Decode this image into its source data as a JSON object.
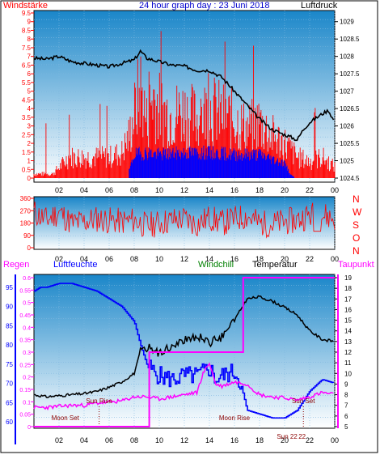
{
  "colors": {
    "wind_speed": "#ff0000",
    "wind_gust": "#ff0000",
    "wind_avg": "#0000ff",
    "pressure": "#000000",
    "direction": "#ff0000",
    "rain": "#ff00ff",
    "humidity": "#0000ff",
    "windchill": "#008000",
    "temperature": "#000000",
    "dewpoint": "#ff00ff",
    "sky_top": "#1a86c9",
    "sky_bottom": "#ffffff"
  },
  "chart_data": [
    {
      "type": "line",
      "title": "24 hour graph day : 23 Juni 2018",
      "left_label": "Windstärke",
      "right_label": "Luftdruck",
      "x_ticks": [
        "02",
        "04",
        "06",
        "08",
        "10",
        "12",
        "14",
        "16",
        "18",
        "20",
        "22",
        "00"
      ],
      "ylim_left": [
        0,
        9.5
      ],
      "yticks_left": [
        "0",
        "0.5",
        "1",
        "1.5",
        "2",
        "2.5",
        "3",
        "3.5",
        "4",
        "4.5",
        "5",
        "5.5",
        "6",
        "6.5",
        "7",
        "7.5",
        "8",
        "8.5",
        "9",
        "9.5"
      ],
      "ylim_right": [
        1024.5,
        1029.25
      ],
      "yticks_right": [
        "1024.5",
        "1025",
        "1025.5",
        "1026",
        "1026.5",
        "1027",
        "1027.5",
        "1028",
        "1028.5",
        "1029"
      ],
      "series": [
        {
          "key": "pressure",
          "hours": [
            0,
            1,
            2,
            3,
            4,
            5,
            6,
            7,
            8,
            8.5,
            9,
            10,
            11,
            12,
            13,
            14,
            15,
            16,
            17,
            18,
            19,
            20,
            20.5,
            21,
            21.5,
            22,
            23,
            23.5,
            24
          ],
          "values": [
            1027.95,
            1027.92,
            1028.0,
            1027.85,
            1027.8,
            1027.75,
            1027.7,
            1027.8,
            1027.9,
            1028.15,
            1027.95,
            1027.85,
            1027.75,
            1027.72,
            1027.6,
            1027.6,
            1027.4,
            1027.0,
            1026.6,
            1026.2,
            1025.9,
            1025.75,
            1025.68,
            1025.6,
            1025.9,
            1026.1,
            1026.35,
            1026.45,
            1026.1
          ]
        },
        {
          "key": "wind_gust",
          "hours": [
            0,
            1.5,
            2.8,
            4,
            5,
            6,
            7,
            7.6,
            8,
            8.5,
            9,
            9.5,
            10,
            11,
            12,
            13,
            14,
            15,
            16,
            17,
            18,
            19,
            20,
            21,
            22,
            23,
            24
          ],
          "values": [
            0.3,
            0.3,
            1.5,
            1.5,
            1.5,
            1.5,
            1.8,
            3.0,
            4.5,
            6.5,
            4.0,
            6.0,
            5.0,
            4.5,
            4.8,
            4.2,
            5.0,
            4.5,
            4.2,
            3.5,
            4.0,
            3.0,
            2.5,
            1.5,
            1.2,
            1.5,
            0.8
          ]
        },
        {
          "key": "wind_avg",
          "hours": [
            0,
            2,
            4,
            6,
            7.5,
            8,
            9,
            10,
            12,
            14,
            16,
            18,
            20,
            20.5,
            21,
            24
          ],
          "values": [
            0,
            0,
            0,
            0,
            0.2,
            1.6,
            1.7,
            1.6,
            1.7,
            1.7,
            1.6,
            1.6,
            1.0,
            0.2,
            0,
            0
          ]
        }
      ]
    },
    {
      "type": "line",
      "left_label": "",
      "right_label": "",
      "direction_labels": [
        "N",
        "W",
        "S",
        "O",
        "N"
      ],
      "x_ticks": [
        "02",
        "04",
        "06",
        "08",
        "10",
        "12",
        "14",
        "16",
        "18",
        "20",
        "22",
        "00"
      ],
      "ylim": [
        0,
        360
      ],
      "yticks": [
        "0",
        "90",
        "180",
        "270",
        "360"
      ],
      "series": [
        {
          "key": "direction",
          "hours": [
            0,
            1,
            2,
            3,
            4,
            5,
            6,
            7,
            8,
            9,
            10,
            11,
            12,
            13,
            14,
            15,
            16,
            17,
            18,
            19,
            20,
            21,
            22,
            23,
            24
          ],
          "values": [
            260,
            200,
            260,
            180,
            190,
            210,
            200,
            190,
            200,
            160,
            180,
            200,
            210,
            170,
            220,
            180,
            210,
            230,
            180,
            170,
            190,
            200,
            240,
            240,
            210
          ]
        }
      ]
    },
    {
      "type": "line",
      "labels": {
        "rain": "Regen",
        "humidity": "Luftfeuchte",
        "windchill": "Windchill",
        "temperature": "Temperatur",
        "dewpoint": "Taupunkt"
      },
      "x_ticks": [
        "02",
        "04",
        "06",
        "08",
        "10",
        "12",
        "14",
        "16",
        "18",
        "20",
        "22",
        "00"
      ],
      "ylim_humidity": [
        60,
        97.5
      ],
      "yticks_humidity": [
        "60",
        "65",
        "70",
        "75",
        "80",
        "85",
        "90",
        "95"
      ],
      "ylim_rain": [
        0,
        0.6
      ],
      "yticks_rain": [
        "0",
        "0.05",
        "0.1",
        "0.15",
        "0.2",
        "0.25",
        "0.3",
        "0.35",
        "0.4",
        "0.45",
        "0.5",
        "0.55",
        "0.6"
      ],
      "ylim_temp": [
        5,
        19
      ],
      "yticks_temp": [
        "5",
        "6",
        "7",
        "8",
        "9",
        "10",
        "11",
        "12",
        "13",
        "14",
        "15",
        "16",
        "17",
        "18",
        "19"
      ],
      "astro_labels": [
        {
          "text": "Moon Set",
          "hour": 2.5
        },
        {
          "text": "Sun Rise",
          "hour": 5.2
        },
        {
          "text": "Moon Rise",
          "hour": 16.0
        },
        {
          "text": "Sun Set",
          "hour": 21.5
        },
        {
          "text": "Sun 22",
          "hour": 20.2
        },
        {
          "text": "22",
          "hour": 21.4
        }
      ],
      "series": [
        {
          "key": "humidity",
          "hours": [
            0,
            0.5,
            1,
            2,
            3,
            4,
            5,
            6,
            7,
            7.5,
            8,
            8.5,
            9,
            9.5,
            10,
            11,
            12,
            13,
            13.5,
            14,
            14.5,
            15,
            16,
            16.5,
            17,
            18,
            19,
            20,
            21,
            22,
            23,
            24
          ],
          "values": [
            94,
            95,
            95,
            96,
            96,
            95,
            94,
            92,
            90,
            88,
            86,
            80,
            75,
            73,
            72,
            71,
            72,
            72,
            73,
            74,
            71,
            72,
            73,
            70,
            63,
            62,
            61,
            61,
            63,
            68,
            71,
            70
          ]
        },
        {
          "key": "temperature",
          "hours": [
            0,
            1,
            2,
            3,
            4,
            5,
            6,
            7,
            8,
            8.5,
            9,
            10,
            11,
            12,
            13,
            14,
            15,
            16,
            17,
            18,
            19,
            20,
            21,
            22,
            23,
            24
          ],
          "values": [
            8.0,
            7.8,
            7.9,
            8.0,
            8.1,
            8.3,
            8.7,
            9.2,
            10.0,
            12.0,
            12.5,
            12.0,
            12.5,
            13.0,
            13.5,
            13.0,
            13.5,
            15.0,
            17.0,
            17.2,
            16.8,
            16.2,
            15.5,
            14.0,
            13.2,
            13.0
          ]
        },
        {
          "key": "dewpoint",
          "hours": [
            0,
            1,
            2,
            3,
            4,
            5,
            6,
            7,
            8,
            9,
            10,
            11,
            12,
            13,
            13.5,
            14,
            14.5,
            15,
            16,
            17,
            18,
            19,
            20,
            21,
            22,
            23,
            24
          ],
          "values": [
            6.8,
            6.8,
            6.9,
            7.0,
            7.0,
            7.2,
            7.3,
            7.4,
            7.8,
            7.8,
            7.6,
            7.8,
            8.0,
            8.2,
            10.0,
            11.0,
            9.0,
            8.8,
            9.2,
            9.0,
            8.0,
            7.8,
            7.7,
            7.5,
            7.8,
            8.2,
            8.0
          ]
        },
        {
          "key": "rain",
          "hours": [
            0,
            9.2,
            9.2,
            16.7,
            16.7,
            24
          ],
          "values": [
            0,
            0,
            0.3,
            0.3,
            0.6,
            0.6
          ]
        }
      ]
    }
  ]
}
